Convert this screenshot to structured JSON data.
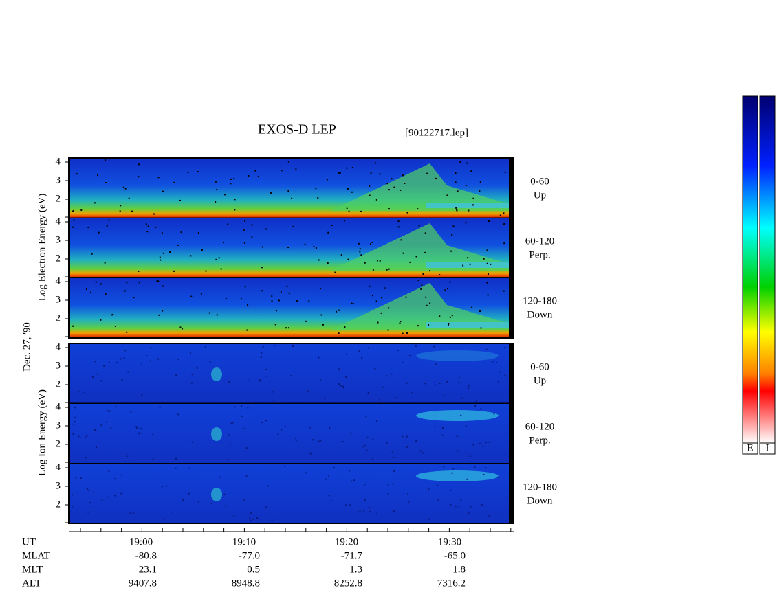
{
  "header": {
    "title": "EXOS-D LEP",
    "file": "[90122717.lep]"
  },
  "axes": {
    "electron_label": "Log  Electron  Energy (eV)",
    "ion_label": "Log  Ion  Energy (eV)",
    "date": "Dec. 27, '90"
  },
  "panels": [
    {
      "ticks": [
        "4",
        "3",
        "2"
      ],
      "angle": "0-60",
      "dir": "Up"
    },
    {
      "ticks": [
        "4",
        "3",
        "2"
      ],
      "angle": "60-120",
      "dir": "Perp."
    },
    {
      "ticks": [
        "4",
        "3",
        "2"
      ],
      "angle": "120-180",
      "dir": "Down"
    },
    {
      "ticks": [
        "4",
        "3",
        "2"
      ],
      "angle": "0-60",
      "dir": "Up"
    },
    {
      "ticks": [
        "4",
        "3",
        "2"
      ],
      "angle": "60-120",
      "dir": "Perp."
    },
    {
      "ticks": [
        "4",
        "3",
        "2"
      ],
      "angle": "120-180",
      "dir": "Down"
    }
  ],
  "table": {
    "row_labels": [
      "UT",
      "MLAT",
      "MLT",
      "ALT"
    ],
    "columns": [
      [
        "19:00",
        "-80.8",
        "23.1",
        "9407.8"
      ],
      [
        "19:10",
        "-77.0",
        "0.5",
        "8948.8"
      ],
      [
        "19:20",
        "-71.7",
        "1.3",
        "8252.8"
      ],
      [
        "19:30",
        "-65.0",
        "1.8",
        "7316.2"
      ]
    ]
  },
  "colorbar": {
    "labels": [
      "E",
      "I"
    ]
  }
}
